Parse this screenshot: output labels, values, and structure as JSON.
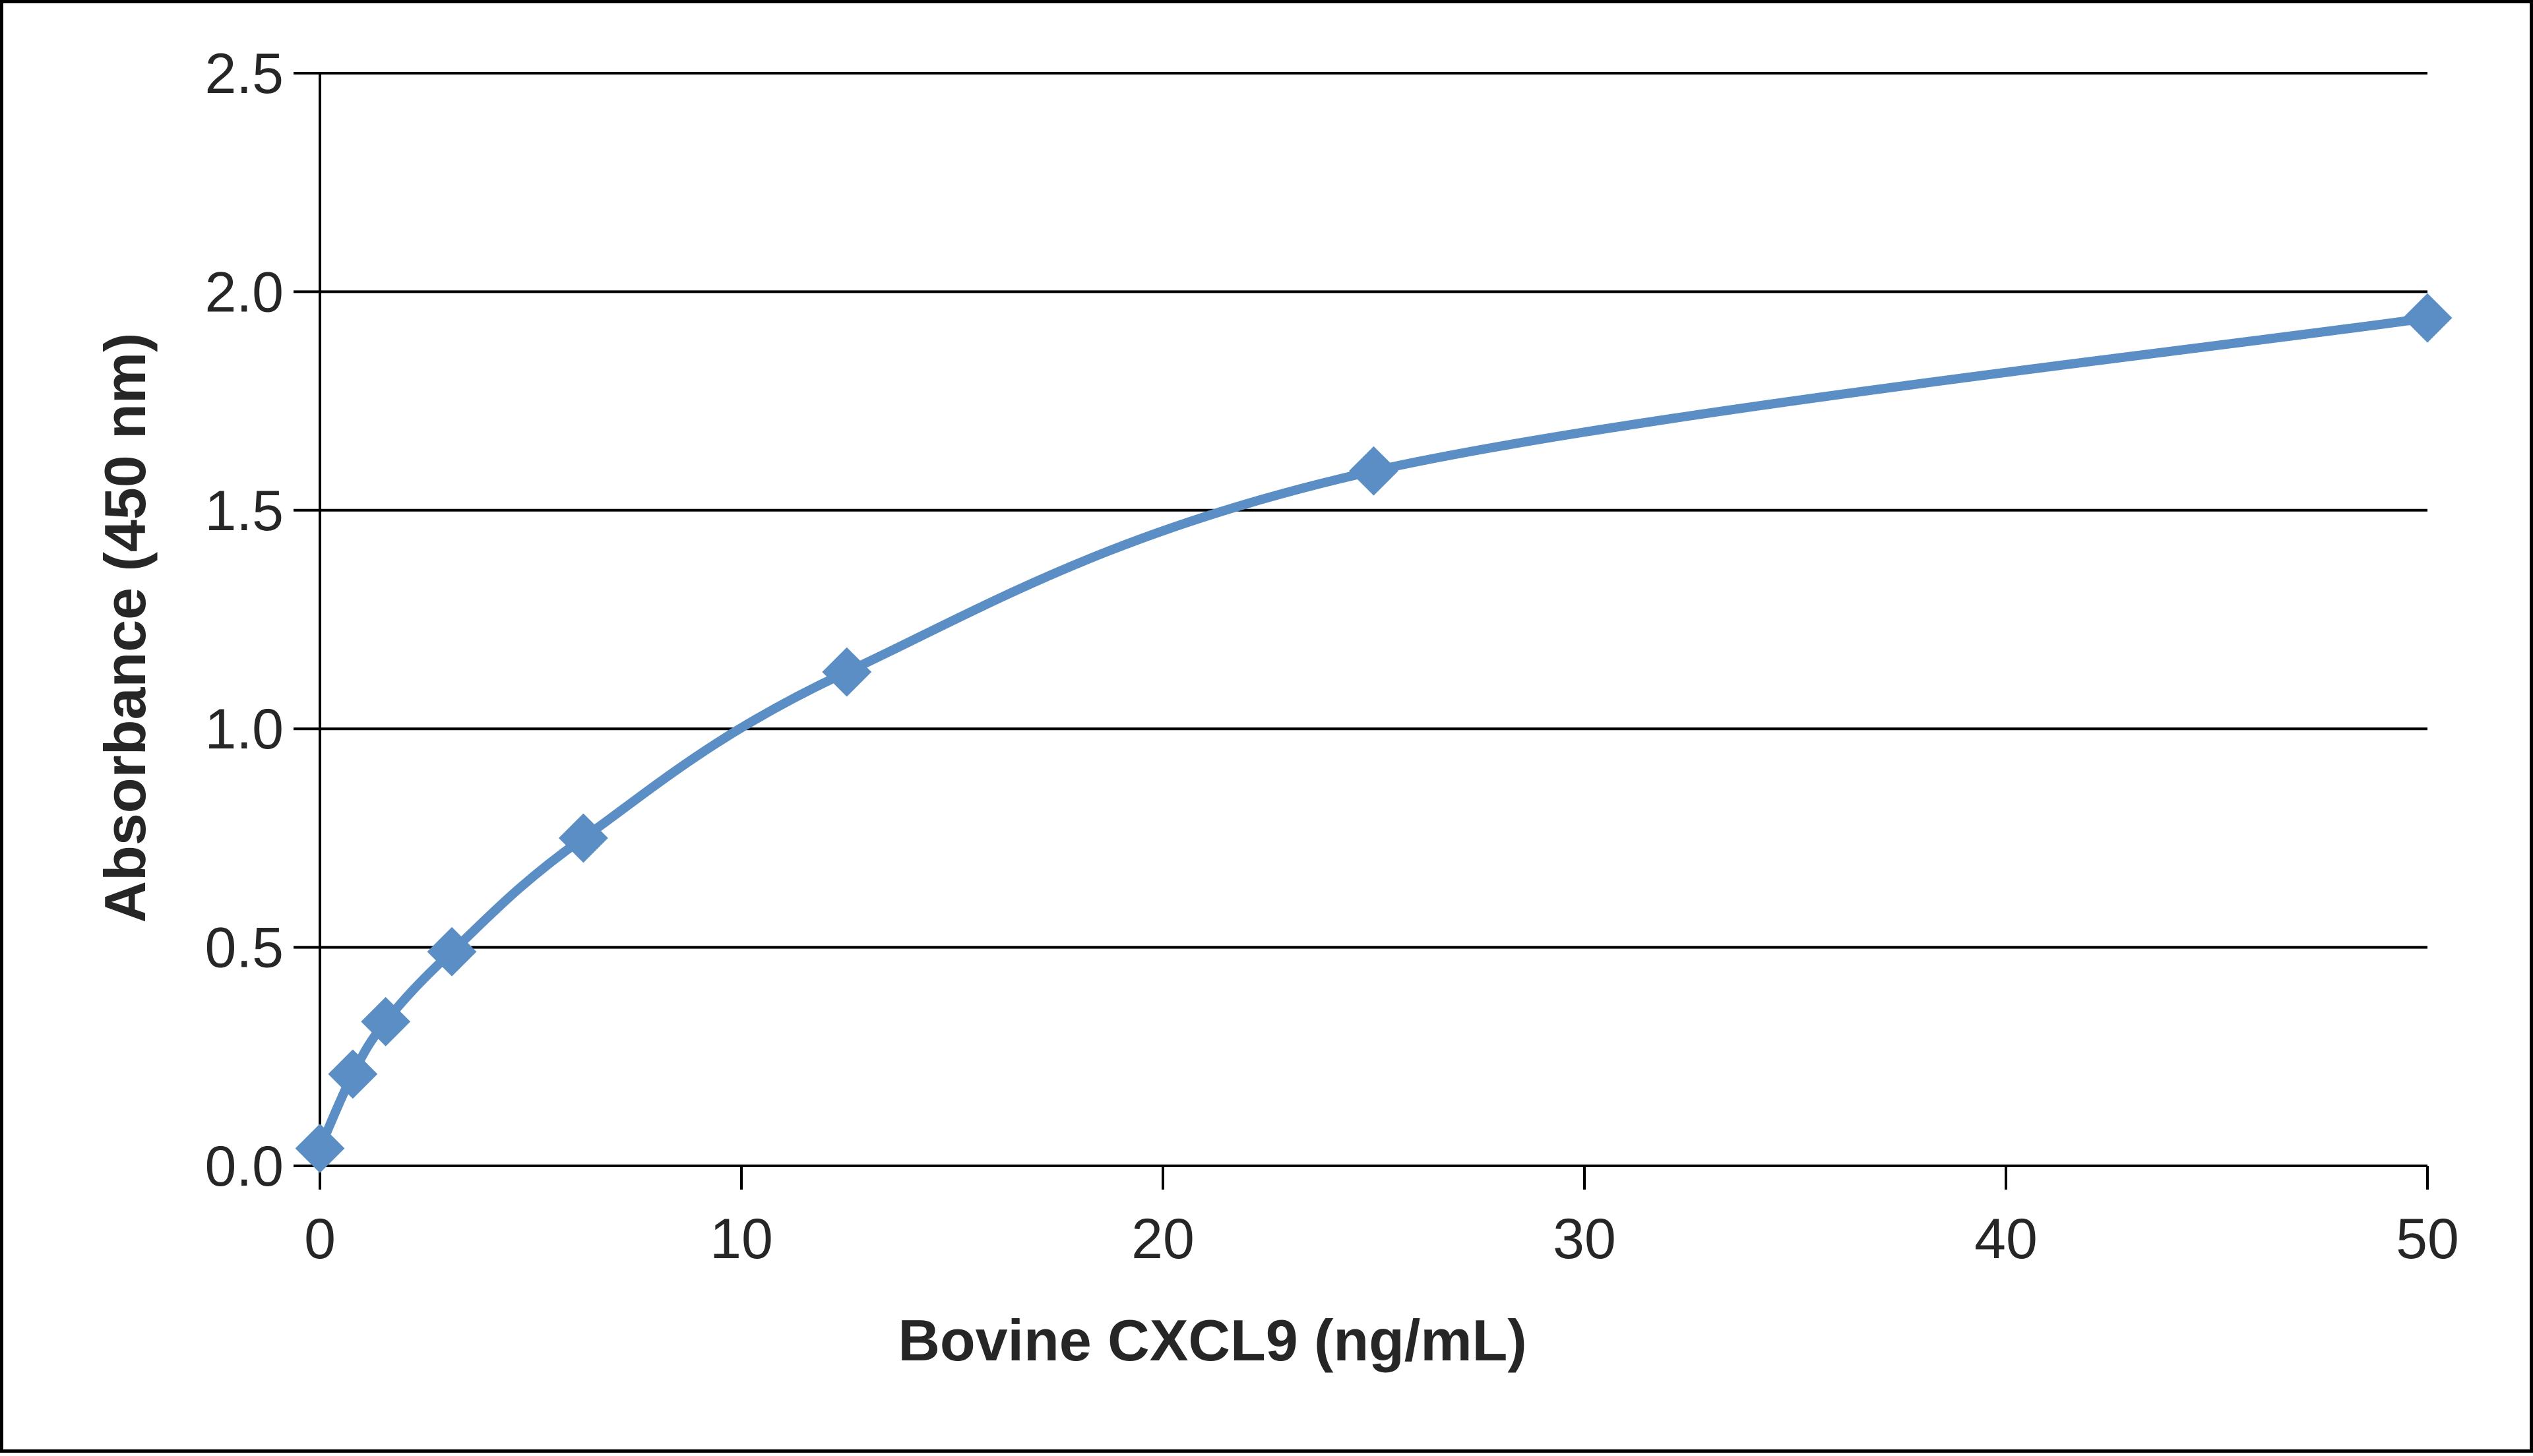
{
  "chart_data": {
    "type": "line",
    "title": "",
    "xlabel": "Bovine CXCL9  (ng/mL)",
    "ylabel": "Absorbance  (450  nm)",
    "xlim": [
      0,
      50
    ],
    "ylim": [
      0,
      2.5
    ],
    "xticks": [
      0,
      10,
      20,
      30,
      40,
      50
    ],
    "yticks": [
      0.0,
      0.5,
      1.0,
      1.5,
      2.0,
      2.5
    ],
    "ytick_labels": [
      "0.0",
      "0.5",
      "1.0",
      "1.5",
      "2.0",
      "2.5"
    ],
    "grid": "horizontal",
    "legend": "none",
    "smooth": true,
    "series": [
      {
        "color": "#5b8ec4",
        "marker": "diamond",
        "x": [
          0,
          0.78,
          1.56,
          3.13,
          6.25,
          12.5,
          25,
          50
        ],
        "y": [
          0.04,
          0.21,
          0.33,
          0.49,
          0.75,
          1.13,
          1.59,
          1.94
        ]
      }
    ]
  }
}
